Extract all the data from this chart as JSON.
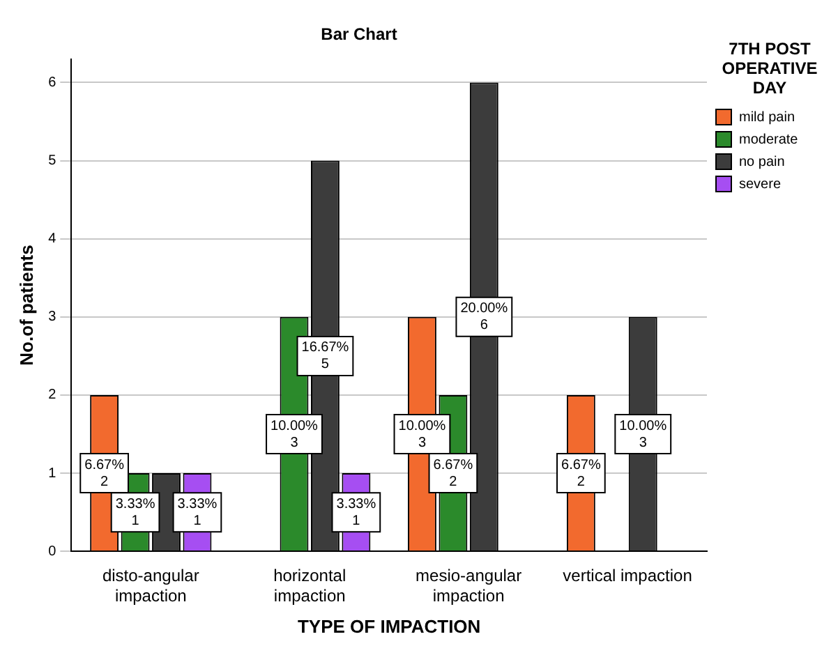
{
  "chart_data": {
    "type": "bar",
    "title": "Bar Chart",
    "xlabel": "TYPE OF IMPACTION",
    "ylabel": "No.of patients",
    "legend_title": "7TH POST OPERATIVE DAY",
    "categories": [
      "disto-angular impaction",
      "horizontal impaction",
      "mesio-angular impaction",
      "vertical impaction"
    ],
    "series": [
      {
        "name": "mild pain",
        "color": "#f26a2e",
        "values": [
          2,
          null,
          3,
          2
        ],
        "value_labels": [
          "6.67%\n2",
          null,
          "10.00%\n3",
          "6.67%\n2"
        ]
      },
      {
        "name": "moderate",
        "color": "#2b8a2b",
        "values": [
          1,
          3,
          2,
          null
        ],
        "value_labels": [
          "3.33%\n1",
          "10.00%\n3",
          "6.67%\n2",
          null
        ]
      },
      {
        "name": "no pain",
        "color": "#3c3c3c",
        "values": [
          1,
          5,
          6,
          3
        ],
        "value_labels": [
          null,
          "16.67%\n5",
          "20.00%\n6",
          "10.00%\n3"
        ]
      },
      {
        "name": "severe",
        "color": "#a64ef2",
        "values": [
          1,
          1,
          null,
          null
        ],
        "value_labels": [
          "3.33%\n1",
          "3.33%\n1",
          null,
          null
        ]
      }
    ],
    "ylim": [
      0,
      6.3
    ],
    "yticks": [
      0,
      1,
      2,
      3,
      4,
      5,
      6
    ],
    "grid": "y",
    "legend": "right"
  }
}
